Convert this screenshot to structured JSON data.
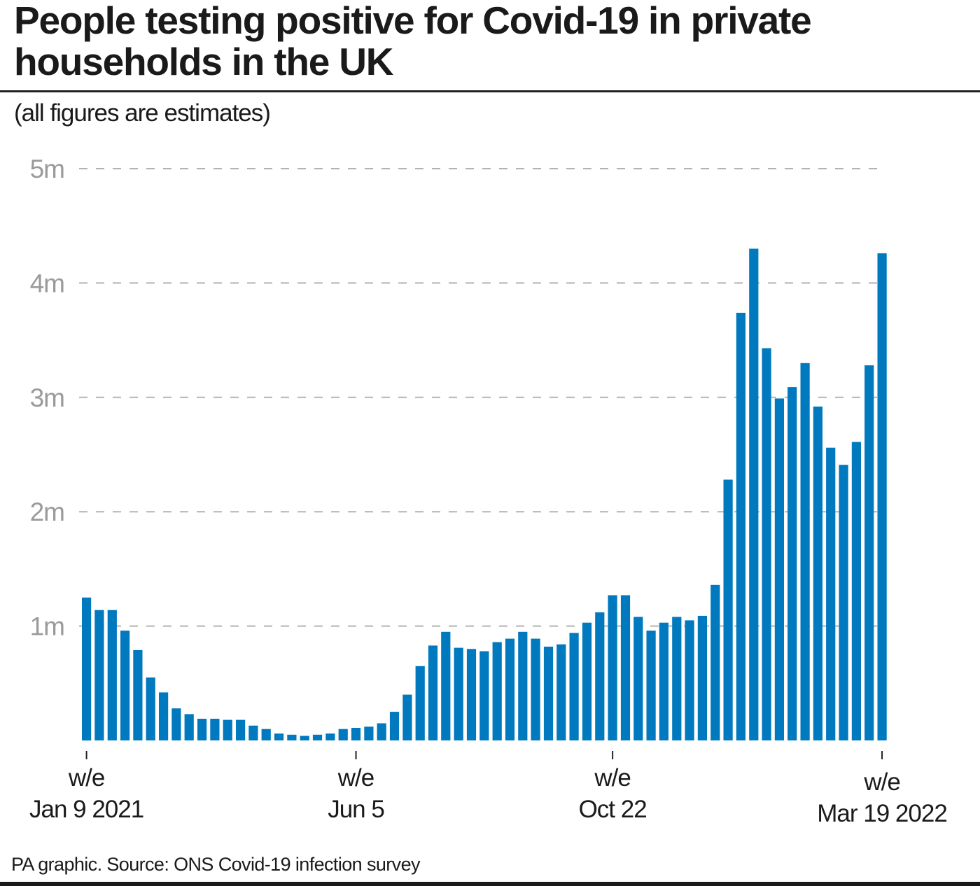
{
  "header": {
    "title": "People testing positive for Covid-19 in private households in the UK",
    "subtitle": "(all figures are estimates)"
  },
  "footer": {
    "source": "PA graphic. Source: ONS Covid-19 infection survey"
  },
  "colors": {
    "bar": "#0079be",
    "grid": "#b3b3b3",
    "axis_label": "#9a9a9a",
    "text": "#1a1a1a"
  },
  "chart_data": {
    "type": "bar",
    "title": "People testing positive for Covid-19 in private households in the UK",
    "subtitle": "(all figures are estimates)",
    "xlabel": "",
    "ylabel": "",
    "unit": "millions of people",
    "ylim": [
      0,
      5
    ],
    "grid": true,
    "legend": "none",
    "y_ticks": [
      {
        "value": 1,
        "label": "1m"
      },
      {
        "value": 2,
        "label": "2m"
      },
      {
        "value": 3,
        "label": "3m"
      },
      {
        "value": 4,
        "label": "4m"
      },
      {
        "value": 5,
        "label": "5m"
      }
    ],
    "x_ticks": [
      {
        "index": 0,
        "line1": "w/e",
        "line2": "Jan 9 2021"
      },
      {
        "index": 21,
        "line1": "w/e",
        "line2": "Jun 5"
      },
      {
        "index": 41,
        "line1": "w/e",
        "line2": "Oct 22"
      },
      {
        "index": 62,
        "line1": "w/e",
        "line2": "Mar 19 2022"
      }
    ],
    "first_week": "w/e Jan 9 2021",
    "last_week": "w/e Mar 19 2022",
    "series": [
      {
        "name": "People testing positive (m)",
        "values": [
          1.25,
          1.14,
          1.14,
          0.96,
          0.79,
          0.55,
          0.42,
          0.28,
          0.23,
          0.19,
          0.19,
          0.18,
          0.18,
          0.13,
          0.1,
          0.06,
          0.05,
          0.04,
          0.05,
          0.06,
          0.1,
          0.11,
          0.12,
          0.15,
          0.25,
          0.4,
          0.65,
          0.83,
          0.95,
          0.81,
          0.8,
          0.78,
          0.86,
          0.89,
          0.95,
          0.89,
          0.82,
          0.84,
          0.94,
          1.03,
          1.12,
          1.27,
          1.27,
          1.08,
          0.96,
          1.03,
          1.08,
          1.05,
          1.09,
          1.36,
          2.28,
          3.74,
          4.3,
          3.43,
          2.99,
          3.09,
          3.3,
          2.92,
          2.56,
          2.41,
          2.61,
          3.28,
          4.26
        ]
      }
    ]
  }
}
